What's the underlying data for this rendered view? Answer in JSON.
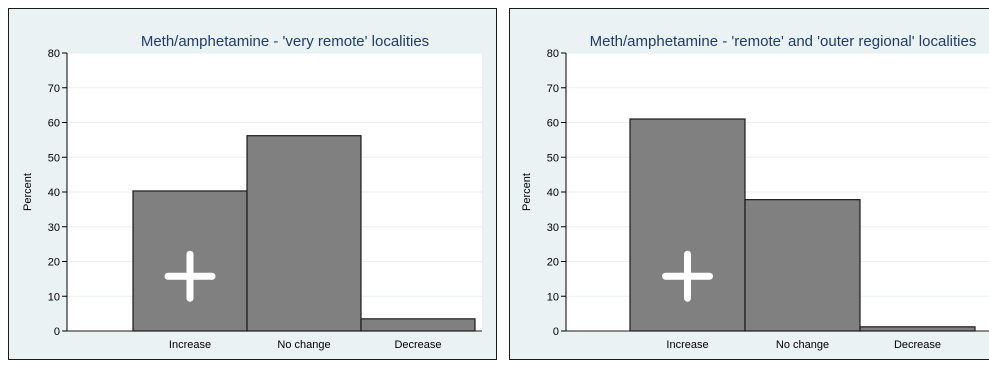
{
  "chart_data": [
    {
      "type": "bar",
      "title": "Meth/amphetamine - 'very remote' localities",
      "ylabel": "Percent",
      "xlabel": "",
      "categories": [
        "Increase",
        "No change",
        "Decrease"
      ],
      "values": [
        40.3,
        56.2,
        3.5
      ],
      "ylim": [
        0,
        80
      ],
      "yticks": [
        "0",
        "10",
        "20",
        "30",
        "40",
        "50",
        "60",
        "70",
        "80"
      ],
      "grid": true,
      "legend": "none",
      "bar_color": "#808080",
      "background_color": "#eaf2f3",
      "title_color": "#1e3d6b",
      "marker": "plus-icon"
    },
    {
      "type": "bar",
      "title": "Meth/amphetamine - 'remote' and 'outer regional' localities",
      "ylabel": "Percent",
      "xlabel": "",
      "categories": [
        "Increase",
        "No change",
        "Decrease"
      ],
      "values": [
        61.0,
        37.8,
        1.2
      ],
      "ylim": [
        0,
        80
      ],
      "yticks": [
        "0",
        "10",
        "20",
        "30",
        "40",
        "50",
        "60",
        "70",
        "80"
      ],
      "grid": true,
      "legend": "none",
      "bar_color": "#808080",
      "background_color": "#eaf2f3",
      "title_color": "#1e3d6b",
      "marker": "plus-icon"
    }
  ]
}
